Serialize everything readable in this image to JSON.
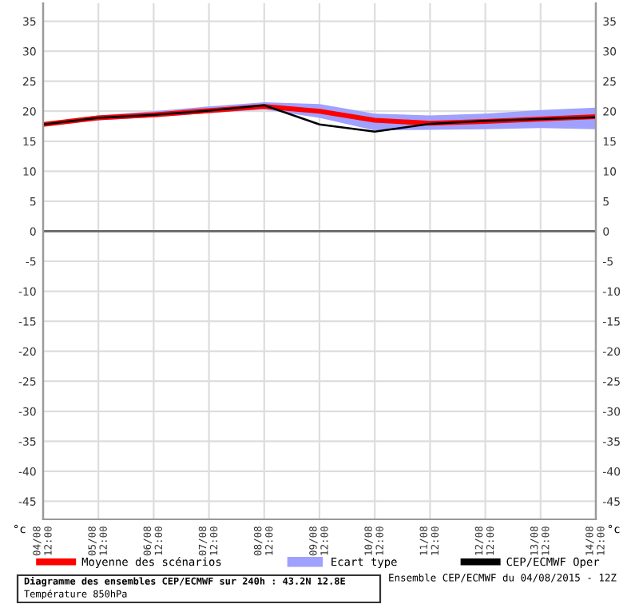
{
  "chart_data": {
    "type": "line",
    "title": "Diagramme des ensembles CEP/ECMWF sur 240h : 43.2N 12.8E",
    "subtitle": "Température 850hPa",
    "ylabel": "°c",
    "y2label": "°c",
    "categories": [
      "04/08\n12:00",
      "05/08\n12:00",
      "06/08\n12:00",
      "07/08\n12:00",
      "08/08\n12:00",
      "09/08\n12:00",
      "10/08\n12:00",
      "11/08\n12:00",
      "12/08\n12:00",
      "13/08\n12:00",
      "14/08\n12:00"
    ],
    "series": [
      {
        "name": "Moyenne des scénarios",
        "color": "#ff0000",
        "values": [
          17.8,
          18.9,
          19.4,
          20.1,
          20.8,
          20.0,
          18.5,
          18.0,
          18.3,
          18.7,
          19.1
        ]
      },
      {
        "name": "Ecart type",
        "type": "area",
        "color": "#a0a0ff",
        "values": [
          null,
          null,
          null,
          null,
          null,
          null,
          null,
          null,
          null,
          null,
          null
        ],
        "lower": [
          17.5,
          18.5,
          19.0,
          19.7,
          20.3,
          18.9,
          16.8,
          16.9,
          17.0,
          17.2,
          17.0
        ],
        "upper": [
          18.1,
          19.3,
          20.0,
          20.8,
          21.5,
          21.2,
          19.6,
          19.3,
          19.6,
          20.2,
          20.6
        ]
      },
      {
        "name": "CEP/ECMWF Oper",
        "color": "#000000",
        "values": [
          17.8,
          18.9,
          19.4,
          20.1,
          21.0,
          17.8,
          16.6,
          17.9,
          18.4,
          18.7,
          19.0
        ]
      }
    ],
    "ylim": [
      -48,
      38
    ],
    "yticks": [
      -45,
      -40,
      -35,
      -30,
      -25,
      -20,
      -15,
      -10,
      -5,
      0,
      5,
      10,
      15,
      20,
      25,
      30,
      35
    ],
    "y2lim": [
      -48,
      38
    ],
    "y2ticks": [
      -45,
      -40,
      -35,
      -30,
      -25,
      -20,
      -15,
      -10,
      -5,
      0,
      5,
      10,
      15,
      20,
      25,
      30,
      35
    ],
    "ref_lines": [
      {
        "axis": "y",
        "value": 0,
        "color": "#666666"
      }
    ],
    "annotations": [
      "Ensemble CEP/ECMWF du 04/08/2015 - 12Z"
    ],
    "grid": true,
    "legend": "bottom",
    "line_style": "solid",
    "marker": "none"
  }
}
